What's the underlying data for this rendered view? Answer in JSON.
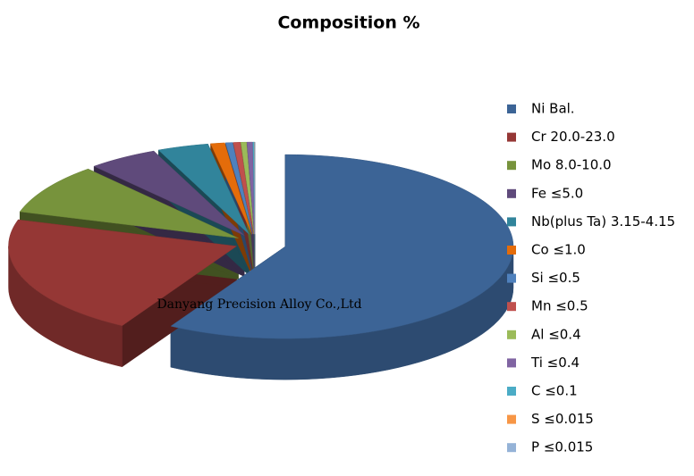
{
  "chart_data": {
    "type": "pie3d",
    "title": "Composition %",
    "annotation": "Danyang Precision Alloy Co.,Ltd",
    "categories": [
      "Ni Bal.",
      "Cr 20.0-23.0",
      "Mo 8.0-10.0",
      "Fe ≤5.0",
      "Nb(plus Ta) 3.15-4.15",
      "Co ≤1.0",
      "Si ≤0.5",
      "Mn ≤0.5",
      "Al ≤0.4",
      "Ti ≤0.4",
      "C ≤0.1",
      "S ≤0.015",
      "P ≤0.015"
    ],
    "values": [
      59,
      21.5,
      9,
      5,
      3.65,
      1,
      0.5,
      0.5,
      0.4,
      0.4,
      0.1,
      0.015,
      0.015
    ],
    "colors": [
      "#3C6496",
      "#953735",
      "#77933C",
      "#5F4A7B",
      "#31849B",
      "#E46C0A",
      "#4F81BD",
      "#C0504D",
      "#9BBB59",
      "#8064A2",
      "#4BACC6",
      "#F79646",
      "#95B3D7"
    ],
    "legend": "right"
  }
}
